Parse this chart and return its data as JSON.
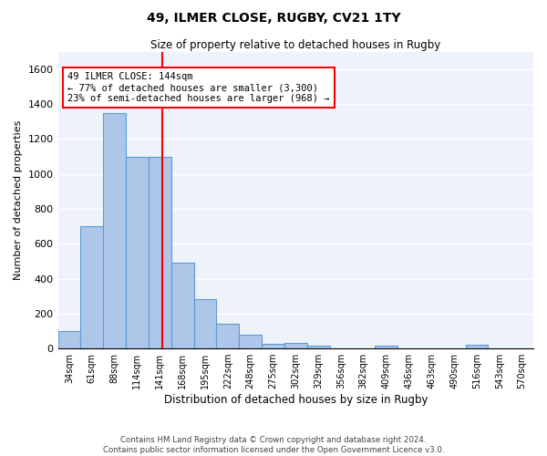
{
  "title1": "49, ILMER CLOSE, RUGBY, CV21 1TY",
  "title2": "Size of property relative to detached houses in Rugby",
  "xlabel": "Distribution of detached houses by size in Rugby",
  "ylabel": "Number of detached properties",
  "categories": [
    "34sqm",
    "61sqm",
    "88sqm",
    "114sqm",
    "141sqm",
    "168sqm",
    "195sqm",
    "222sqm",
    "248sqm",
    "275sqm",
    "302sqm",
    "329sqm",
    "356sqm",
    "382sqm",
    "409sqm",
    "436sqm",
    "463sqm",
    "490sqm",
    "516sqm",
    "543sqm",
    "570sqm"
  ],
  "values": [
    100,
    700,
    1350,
    1100,
    1100,
    490,
    280,
    140,
    80,
    25,
    30,
    15,
    0,
    0,
    15,
    0,
    0,
    0,
    20,
    0,
    0
  ],
  "bar_color": "#aec6e8",
  "bar_edge_color": "#5b9bd5",
  "bar_width": 1.0,
  "vline_color": "red",
  "annotation_text": "49 ILMER CLOSE: 144sqm\n← 77% of detached houses are smaller (3,300)\n23% of semi-detached houses are larger (968) →",
  "ylim": [
    0,
    1700
  ],
  "yticks": [
    0,
    200,
    400,
    600,
    800,
    1000,
    1200,
    1400,
    1600
  ],
  "bg_color": "#eef3fb",
  "grid_color": "white",
  "footer_line1": "Contains HM Land Registry data © Crown copyright and database right 2024.",
  "footer_line2": "Contains public sector information licensed under the Open Government Licence v3.0."
}
